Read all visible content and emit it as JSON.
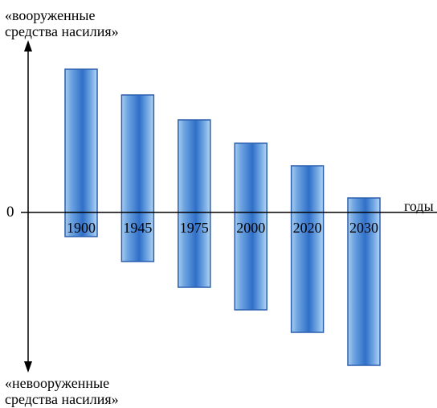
{
  "chart_data": {
    "type": "bar",
    "categories": [
      "1900",
      "1945",
      "1975",
      "2000",
      "2020",
      "2030"
    ],
    "series": [
      {
        "ranges": [
          [
            -30,
            178
          ],
          [
            -61,
            146
          ],
          [
            -93,
            115
          ],
          [
            -121,
            86
          ],
          [
            -149,
            58
          ],
          [
            -190,
            18
          ]
        ]
      }
    ],
    "ylim": [
      -200,
      240
    ],
    "grid": false,
    "legend": "none",
    "yaxis_top_label": [
      "«вооруженные",
      "средства насилия»"
    ],
    "yaxis_bottom_label": [
      "«невооруженные",
      "средства насилия»"
    ],
    "zero_label": "0",
    "xlabel": "годы",
    "colors": {
      "bar_dark": "#2f6fc8",
      "bar_light": "#b8d6f2",
      "axis": "#000000"
    }
  }
}
